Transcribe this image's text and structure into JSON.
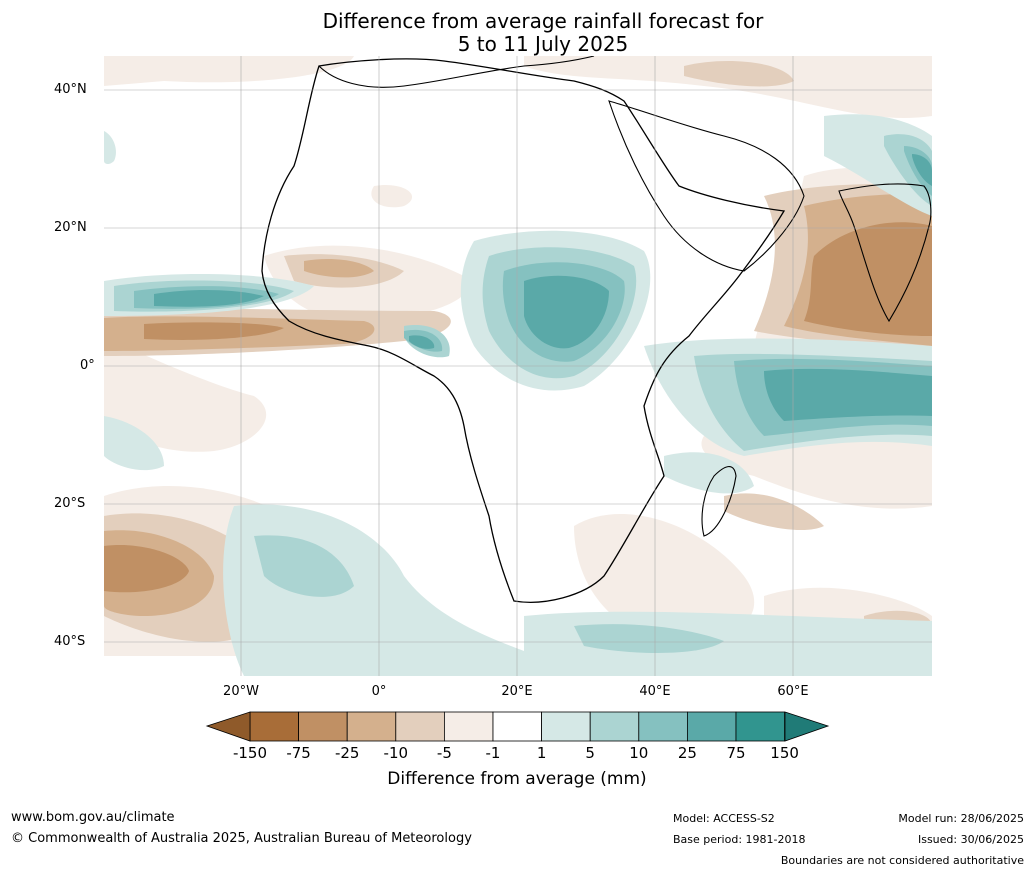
{
  "title_line1": "Difference from average rainfall forecast for",
  "title_line2": "5 to 11 July 2025",
  "lat_labels": [
    "40°N",
    "20°N",
    "0°",
    "20°S",
    "40°S"
  ],
  "lon_labels": [
    "20°W",
    "0°",
    "20°E",
    "40°E",
    "60°E"
  ],
  "colorbar": {
    "ticks": [
      "-150",
      "-75",
      "-25",
      "-10",
      "-5",
      "-1",
      "1",
      "5",
      "10",
      "25",
      "75",
      "150"
    ],
    "colors": [
      "#a86d38",
      "#c09064",
      "#d4b08d",
      "#e3cfbd",
      "#f5ede7",
      "#ffffff",
      "#d5e8e6",
      "#abd4d2",
      "#85c1c0",
      "#5aa9a8",
      "#31958f"
    ],
    "under_color": "#8f5a2a",
    "over_color": "#207b77",
    "title": "Difference from average (mm)"
  },
  "footer": {
    "url": "www.bom.gov.au/climate",
    "copyright": "© Commonwealth of Australia 2025, Australian Bureau of Meteorology",
    "model": "Model: ACCESS-S2",
    "base_period": "Base period: 1981-2018",
    "model_run": "Model run: 28/06/2025",
    "issued": "Issued: 30/06/2025",
    "disclaimer": "Boundaries are not considered authoritative"
  }
}
